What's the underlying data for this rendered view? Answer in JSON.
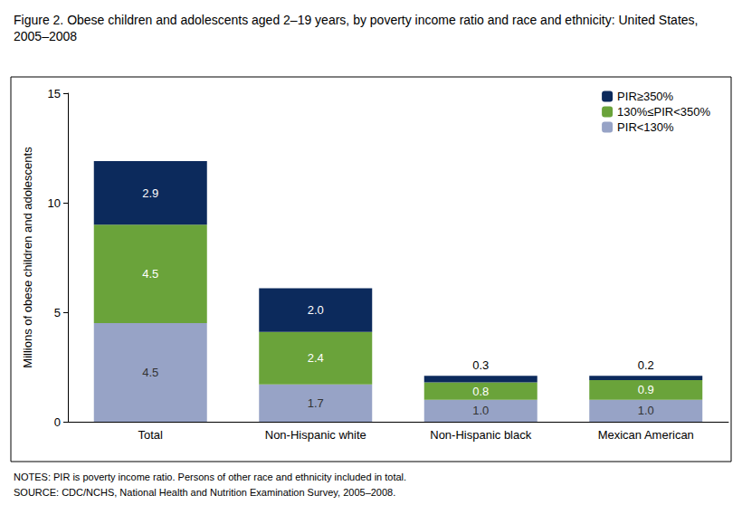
{
  "chart_data": {
    "type": "bar",
    "title": "Figure 2. Obese children and adolescents aged 2–19 years, by poverty income ratio and race and ethnicity: United States, 2005–2008",
    "y_label": "Millions of obese children and adolescents",
    "notes": [
      "NOTES: PIR is poverty income ratio. Persons of other race and ethnicity included in total.",
      "SOURCE: CDC/NCHS, National Health and Nutrition Examination Survey, 2005–2008."
    ],
    "categories": [
      "Total",
      "Non-Hispanic white",
      "Non-Hispanic black",
      "Mexican American"
    ],
    "series": [
      {
        "name": "PIR<130%",
        "color": "#97a3c6",
        "values": [
          4.5,
          1.7,
          1.0,
          1.0
        ],
        "value_labels": [
          "4.5",
          "1.7",
          "1.0",
          "1.0"
        ]
      },
      {
        "name": "130%≤PIR<350%",
        "color": "#6aa33a",
        "values": [
          4.5,
          2.4,
          0.8,
          0.9
        ],
        "value_labels": [
          "4.5",
          "2.4",
          "0.8",
          "0.9"
        ]
      },
      {
        "name": "PIR≥350%",
        "color": "#0c2a5c",
        "values": [
          2.9,
          2.0,
          0.3,
          0.2
        ],
        "value_labels": [
          "2.9",
          "2.0",
          "0.3",
          "0.2"
        ]
      }
    ],
    "stacked": true,
    "data_labels": true,
    "legend": "top-right",
    "grid": false,
    "ylim": [
      0,
      15
    ],
    "yticks": [
      0,
      5,
      10,
      15
    ]
  }
}
